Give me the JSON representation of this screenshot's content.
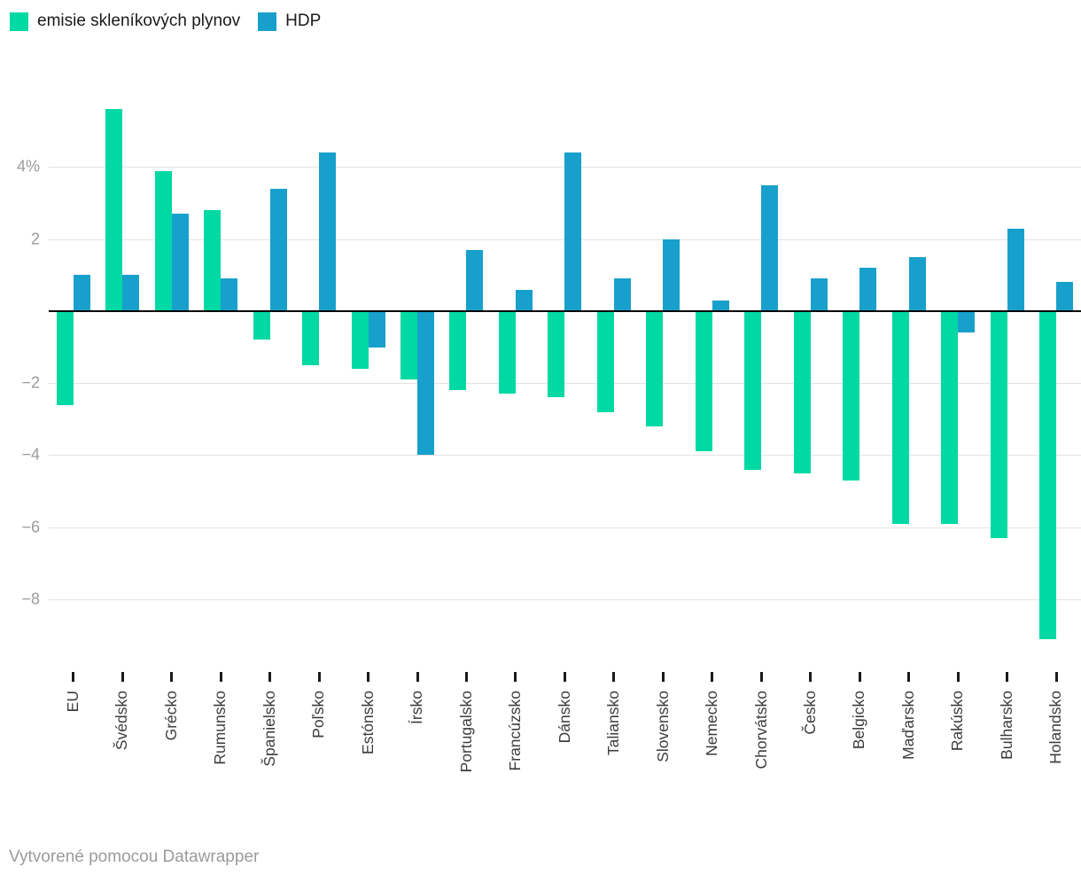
{
  "legend": {
    "items": [
      {
        "label": "emisie skleníkových plynov",
        "color": "#00d9a3"
      },
      {
        "label": "HDP",
        "color": "#18a0cc"
      }
    ]
  },
  "footer": {
    "text": "Vytvorené pomocou Datawrapper"
  },
  "chart_data": {
    "type": "bar",
    "title": "",
    "xlabel": "",
    "ylabel": "",
    "categories": [
      "EU",
      "Švédsko",
      "Grécko",
      "Rumunsko",
      "Španielsko",
      "Poľsko",
      "Estónsko",
      "Írsko",
      "Portugalsko",
      "Francúzsko",
      "Dánsko",
      "Taliansko",
      "Slovensko",
      "Nemecko",
      "Chorvátsko",
      "Česko",
      "Belgicko",
      "Maďarsko",
      "Rakúsko",
      "Bulharsko",
      "Holandsko"
    ],
    "series": [
      {
        "name": "emisie skleníkových plynov",
        "color": "#00d9a3",
        "values": [
          -2.6,
          5.6,
          3.9,
          2.8,
          -0.8,
          -1.5,
          -1.6,
          -1.9,
          -2.2,
          -2.3,
          -2.4,
          -2.8,
          -3.2,
          -3.9,
          -4.4,
          -4.5,
          -4.7,
          -5.9,
          -5.9,
          -6.3,
          -9.1
        ]
      },
      {
        "name": "HDP",
        "color": "#18a0cc",
        "values": [
          1.0,
          1.0,
          2.7,
          0.9,
          3.4,
          4.4,
          -1.0,
          -4.0,
          1.7,
          0.6,
          4.4,
          0.9,
          2.0,
          0.3,
          3.5,
          0.9,
          1.2,
          1.5,
          -0.6,
          2.3,
          0.8
        ]
      }
    ],
    "yticks": [
      {
        "value": 4,
        "label": "4%"
      },
      {
        "value": 2,
        "label": "2"
      },
      {
        "value": -2,
        "label": "−2"
      },
      {
        "value": -4,
        "label": "−4"
      },
      {
        "value": -6,
        "label": "−6"
      },
      {
        "value": -8,
        "label": "−8"
      }
    ],
    "ylim": [
      -9.7,
      6.3
    ],
    "grid": true,
    "legend_position": "top-left",
    "unit": "%"
  }
}
